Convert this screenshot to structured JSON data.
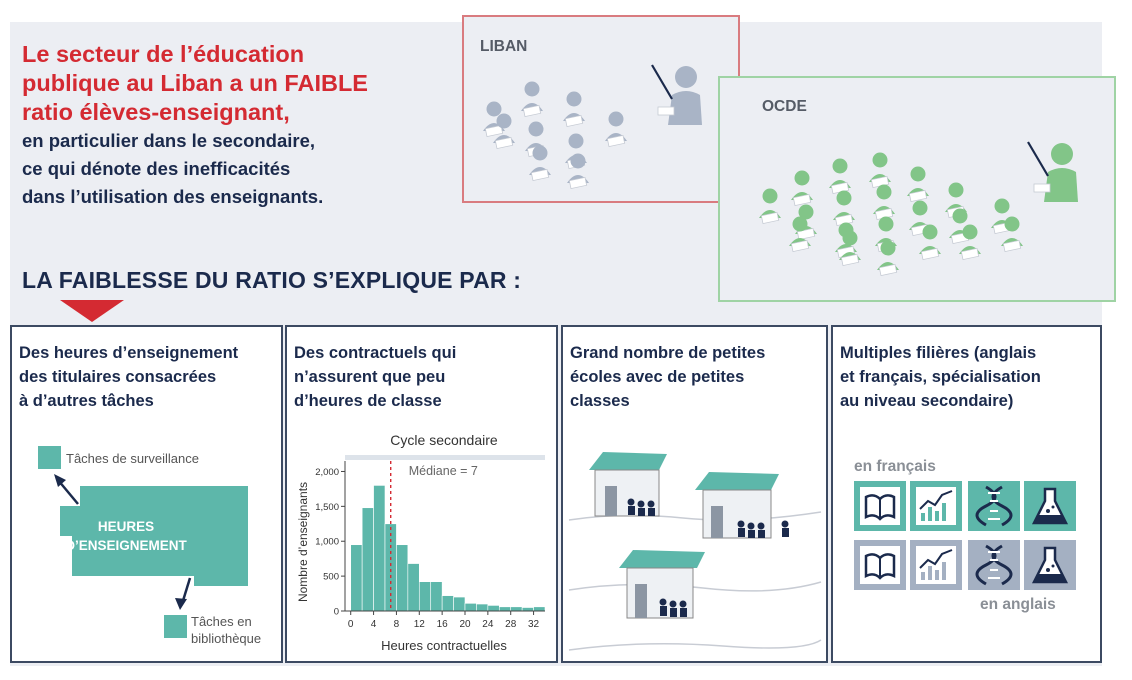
{
  "headline": {
    "red_lines": [
      "Le secteur de l’éducation",
      "publique au Liban a un FAIBLE",
      "ratio élèves-enseignant,"
    ],
    "dark_lines": [
      "en particulier dans le secondaire,",
      "ce qui dénote des inefficacités",
      "dans l’utilisation des enseignants."
    ]
  },
  "comparison": {
    "liban_label": "LIBAN",
    "ocde_label": "OCDE",
    "liban_students": 9,
    "ocde_students": 20,
    "colors": {
      "liban": "#d97b7f",
      "ocde": "#9fd3a4",
      "liban_figures": "#a9b4c6",
      "ocde_figures": "#82c588"
    }
  },
  "subhead": "LA FAIBLESSE DU RATIO S’EXPLIQUE PAR :",
  "panels": [
    {
      "title_lines": [
        "Des heures d’enseignement",
        "des titulaires consacrées",
        "à d’autres tâches"
      ],
      "hours_lines": [
        "HEURES",
        "D’ENSEIGNEMENT"
      ],
      "surveillance_label": "Tâches de surveillance",
      "bibliotheque_lines": [
        "Tâches en",
        "bibliothèque"
      ]
    },
    {
      "title_lines": [
        "Des contractuels qui",
        "n’assurent que peu",
        "d’heures de classe"
      ]
    },
    {
      "title_lines": [
        "Grand nombre de petites",
        "écoles avec de petites",
        "classes"
      ]
    },
    {
      "title_lines": [
        "Multiples filières (anglais",
        "et français, spécialisation",
        "au niveau secondaire)"
      ],
      "label_fr": "en français",
      "label_en": "en anglais",
      "tiles": [
        "book-icon",
        "chart-icon",
        "dna-icon",
        "flask-icon"
      ]
    }
  ],
  "chart_data": {
    "type": "bar",
    "title": "Cycle secondaire",
    "xlabel": "Heures contractuelles",
    "ylabel": "Nombre d’enseignants",
    "bin_width": 2,
    "bin_starts": [
      0,
      2,
      4,
      6,
      8,
      10,
      12,
      14,
      16,
      18,
      20,
      22,
      24,
      26,
      28,
      30,
      32
    ],
    "values": [
      950,
      1480,
      1800,
      1250,
      950,
      680,
      420,
      420,
      220,
      200,
      110,
      100,
      80,
      60,
      60,
      50,
      60
    ],
    "xticks": [
      "0",
      "4",
      "8",
      "12",
      "16",
      "20",
      "24",
      "28",
      "32"
    ],
    "yticks": [
      "0",
      "500",
      "1,000",
      "1,500",
      "2,000"
    ],
    "xlim": [
      -1,
      34
    ],
    "ylim": [
      0,
      2150
    ],
    "median": 7,
    "median_label": "Médiane = 7",
    "grid": false,
    "color": "#5db7aa"
  }
}
